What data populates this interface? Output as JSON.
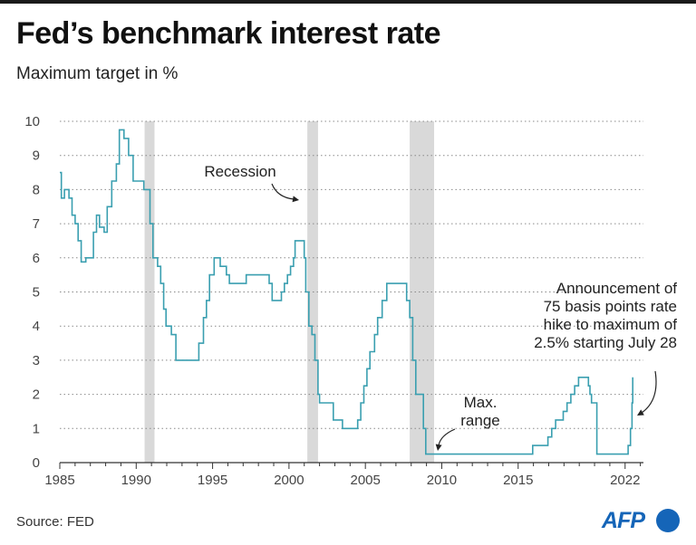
{
  "header": {
    "title": "Fed’s benchmark interest rate",
    "subtitle": "Maximum target in %"
  },
  "footer": {
    "source": "Source: FED",
    "logo_text": "AFP"
  },
  "chart_data": {
    "type": "line",
    "title": "Fed’s benchmark interest rate",
    "subtitle": "Maximum target in %",
    "xlabel": "",
    "ylabel": "",
    "xlim": [
      1985,
      2023.2
    ],
    "ylim": [
      0,
      10
    ],
    "yticks": [
      0,
      1,
      2,
      3,
      4,
      5,
      6,
      7,
      8,
      9,
      10
    ],
    "xticks": [
      1985,
      1990,
      1995,
      2000,
      2005,
      2010,
      2015,
      2022
    ],
    "grid": "horizontal dotted",
    "line_color": "#3a9fb0",
    "recession_color": "#d9d9d9",
    "recessions": [
      [
        1990.55,
        1991.2
      ],
      [
        2001.2,
        2001.9
      ],
      [
        2007.9,
        2009.5
      ]
    ],
    "series": [
      {
        "values": [
          [
            1985.0,
            8.5
          ],
          [
            1985.1,
            7.75
          ],
          [
            1985.3,
            8.0
          ],
          [
            1985.6,
            7.75
          ],
          [
            1985.8,
            7.25
          ],
          [
            1986.0,
            7.0
          ],
          [
            1986.2,
            6.5
          ],
          [
            1986.4,
            5.88
          ],
          [
            1986.7,
            6.0
          ],
          [
            1987.2,
            6.75
          ],
          [
            1987.4,
            7.25
          ],
          [
            1987.6,
            6.9
          ],
          [
            1987.9,
            6.75
          ],
          [
            1988.1,
            7.5
          ],
          [
            1988.4,
            8.25
          ],
          [
            1988.7,
            8.75
          ],
          [
            1988.9,
            9.75
          ],
          [
            1989.2,
            9.5
          ],
          [
            1989.5,
            9.0
          ],
          [
            1989.8,
            8.25
          ],
          [
            1990.5,
            8.0
          ],
          [
            1990.9,
            7.0
          ],
          [
            1991.1,
            6.0
          ],
          [
            1991.4,
            5.75
          ],
          [
            1991.6,
            5.25
          ],
          [
            1991.8,
            4.5
          ],
          [
            1991.95,
            4.0
          ],
          [
            1992.3,
            3.75
          ],
          [
            1992.6,
            3.0
          ],
          [
            1994.1,
            3.5
          ],
          [
            1994.4,
            4.25
          ],
          [
            1994.6,
            4.75
          ],
          [
            1994.8,
            5.5
          ],
          [
            1995.1,
            6.0
          ],
          [
            1995.5,
            5.75
          ],
          [
            1995.9,
            5.5
          ],
          [
            1996.1,
            5.25
          ],
          [
            1997.2,
            5.5
          ],
          [
            1998.7,
            5.25
          ],
          [
            1998.9,
            4.75
          ],
          [
            1999.5,
            5.0
          ],
          [
            1999.7,
            5.25
          ],
          [
            1999.9,
            5.5
          ],
          [
            2000.1,
            5.75
          ],
          [
            2000.3,
            6.0
          ],
          [
            2000.4,
            6.5
          ],
          [
            2001.0,
            6.0
          ],
          [
            2001.1,
            5.0
          ],
          [
            2001.3,
            4.0
          ],
          [
            2001.5,
            3.75
          ],
          [
            2001.7,
            3.0
          ],
          [
            2001.9,
            2.0
          ],
          [
            2002.0,
            1.75
          ],
          [
            2002.9,
            1.25
          ],
          [
            2003.5,
            1.0
          ],
          [
            2004.5,
            1.25
          ],
          [
            2004.7,
            1.75
          ],
          [
            2004.9,
            2.25
          ],
          [
            2005.1,
            2.75
          ],
          [
            2005.3,
            3.25
          ],
          [
            2005.6,
            3.75
          ],
          [
            2005.8,
            4.25
          ],
          [
            2006.1,
            4.75
          ],
          [
            2006.4,
            5.25
          ],
          [
            2007.7,
            4.75
          ],
          [
            2007.9,
            4.25
          ],
          [
            2008.1,
            3.0
          ],
          [
            2008.3,
            2.0
          ],
          [
            2008.8,
            1.0
          ],
          [
            2008.95,
            0.25
          ],
          [
            2015.95,
            0.5
          ],
          [
            2016.95,
            0.75
          ],
          [
            2017.2,
            1.0
          ],
          [
            2017.45,
            1.25
          ],
          [
            2017.95,
            1.5
          ],
          [
            2018.2,
            1.75
          ],
          [
            2018.45,
            2.0
          ],
          [
            2018.7,
            2.25
          ],
          [
            2018.95,
            2.5
          ],
          [
            2019.6,
            2.25
          ],
          [
            2019.7,
            2.0
          ],
          [
            2019.8,
            1.75
          ],
          [
            2020.15,
            0.25
          ],
          [
            2022.2,
            0.5
          ],
          [
            2022.35,
            1.0
          ],
          [
            2022.45,
            1.75
          ],
          [
            2022.5,
            2.5
          ]
        ]
      }
    ],
    "annotations": [
      {
        "id": "recession",
        "lines": [
          "Recession"
        ]
      },
      {
        "id": "max-range",
        "lines": [
          "Max.",
          "range"
        ]
      },
      {
        "id": "july-hike",
        "lines": [
          "Announcement of",
          "75 basis points rate",
          "hike to maximum of",
          "2.5% starting July 28"
        ]
      }
    ]
  }
}
